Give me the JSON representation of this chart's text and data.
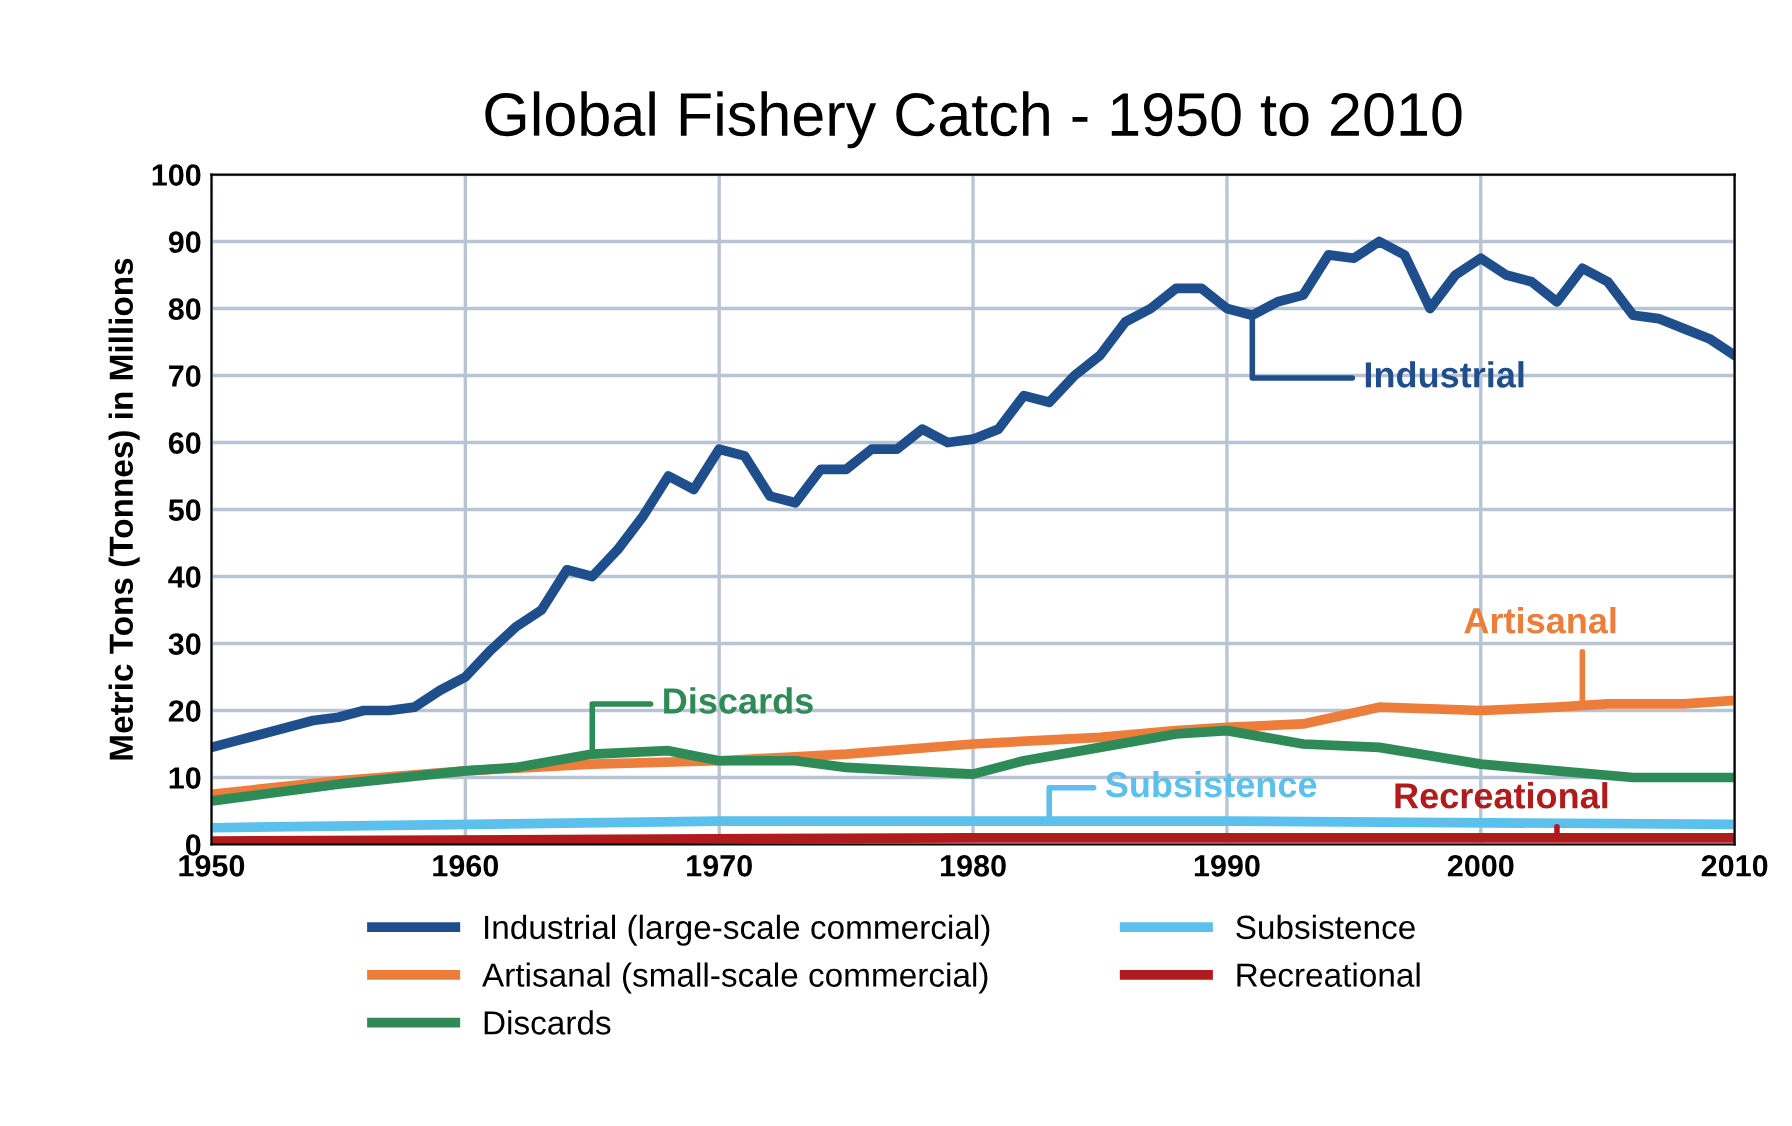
{
  "chart_data": {
    "type": "line",
    "title": "Global Fishery Catch - 1950 to 2010",
    "ylabel": "Metric Tons (Tonnes) in Millions",
    "xlim": [
      1950,
      2010
    ],
    "xticks": [
      1950,
      1960,
      1970,
      1980,
      1990,
      2000,
      2010
    ],
    "ylim": [
      0,
      100
    ],
    "yticks": [
      0,
      10,
      20,
      30,
      40,
      50,
      60,
      70,
      80,
      90,
      100
    ],
    "grid": true,
    "legend": "bottom",
    "line_style": "solid",
    "marker": "none",
    "series": [
      {
        "name": "Industrial (large-scale commercial)",
        "color": "#1f4e8c",
        "x": [
          1950,
          1951,
          1952,
          1953,
          1954,
          1955,
          1956,
          1957,
          1958,
          1959,
          1960,
          1961,
          1962,
          1963,
          1964,
          1965,
          1966,
          1967,
          1968,
          1969,
          1970,
          1971,
          1972,
          1973,
          1974,
          1975,
          1976,
          1977,
          1978,
          1979,
          1980,
          1981,
          1982,
          1983,
          1984,
          1985,
          1986,
          1987,
          1988,
          1989,
          1990,
          1991,
          1992,
          1993,
          1994,
          1995,
          1996,
          1997,
          1998,
          1999,
          2000,
          2001,
          2002,
          2003,
          2004,
          2005,
          2006,
          2007,
          2008,
          2009,
          2010
        ],
        "values": [
          14.5,
          15.5,
          16.5,
          17.5,
          18.5,
          19,
          20,
          20,
          20.5,
          23,
          25,
          29,
          32.5,
          35,
          41,
          40,
          44,
          49,
          55,
          53,
          59,
          58,
          52,
          51,
          56,
          56,
          59,
          59,
          62,
          60,
          60.5,
          62,
          67,
          66,
          70,
          73,
          78,
          80,
          83,
          83,
          80,
          79,
          81,
          82,
          88,
          87.5,
          90,
          88,
          80,
          85,
          87.5,
          85,
          84,
          81,
          86,
          84,
          79,
          78.5,
          77,
          75.5,
          73
        ]
      },
      {
        "name": "Artisanal (small-scale commercial)",
        "color": "#ed7d3a",
        "x": [
          1950,
          1955,
          1960,
          1965,
          1970,
          1975,
          1980,
          1985,
          1988,
          1990,
          1993,
          1996,
          2000,
          2003,
          2005,
          2008,
          2010
        ],
        "values": [
          7.5,
          9.5,
          11,
          12,
          12.5,
          13.5,
          15,
          16,
          17,
          17.5,
          18,
          20.5,
          20,
          20.5,
          21,
          21,
          21.5
        ]
      },
      {
        "name": "Discards",
        "color": "#2e8b57",
        "x": [
          1950,
          1952,
          1955,
          1960,
          1962,
          1965,
          1968,
          1970,
          1973,
          1975,
          1980,
          1982,
          1985,
          1988,
          1990,
          1993,
          1996,
          2000,
          2003,
          2006,
          2010
        ],
        "values": [
          6.5,
          7.5,
          9,
          11,
          11.5,
          13.5,
          14,
          12.5,
          12.5,
          11.5,
          10.5,
          12.5,
          14.5,
          16.5,
          17,
          15,
          14.5,
          12,
          11,
          10,
          10
        ]
      },
      {
        "name": "Subsistence",
        "color": "#5bc0eb",
        "x": [
          1950,
          1970,
          1990,
          2010
        ],
        "values": [
          2.5,
          3.5,
          3.5,
          3
        ]
      },
      {
        "name": "Recreational",
        "color": "#b01c1c",
        "x": [
          1950,
          1980,
          2010
        ],
        "values": [
          0.5,
          1,
          1
        ]
      }
    ],
    "annotations": [
      {
        "text": "Industrial",
        "x": 1991,
        "y": 80
      },
      {
        "text": "Artisanal",
        "x": 2004,
        "y": 20.5
      },
      {
        "text": "Discards",
        "x": 1965,
        "y": 13.5
      },
      {
        "text": "Subsistence",
        "x": 1983,
        "y": 3.5
      },
      {
        "text": "Recreational",
        "x": 2003,
        "y": 1
      }
    ]
  }
}
